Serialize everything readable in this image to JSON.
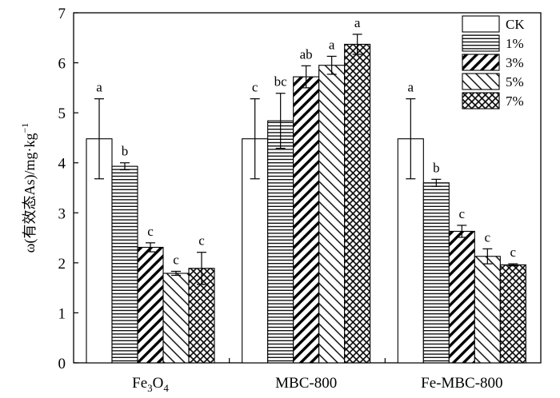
{
  "chart_data": {
    "type": "bar",
    "categories": [
      "Fe3O4",
      "MBC-800",
      "Fe-MBC-800"
    ],
    "category_labels": [
      {
        "main": "Fe",
        "sub": "3",
        "main2": "O",
        "sub2": "4"
      },
      {
        "main": "MBC-800",
        "sub": "",
        "main2": "",
        "sub2": ""
      },
      {
        "main": "Fe-MBC-800",
        "sub": "",
        "main2": "",
        "sub2": ""
      }
    ],
    "series": [
      {
        "name": "CK",
        "pattern": "none",
        "values": [
          4.48,
          4.48,
          4.48
        ],
        "errors": [
          0.8,
          0.8,
          0.8
        ],
        "letters": [
          "a",
          "c",
          "a"
        ]
      },
      {
        "name": "1%",
        "pattern": "hlines",
        "values": [
          3.93,
          4.84,
          3.6
        ],
        "errors": [
          0.07,
          0.55,
          0.07
        ],
        "letters": [
          "b",
          "bc",
          "b"
        ]
      },
      {
        "name": "3%",
        "pattern": "diag-right",
        "values": [
          2.31,
          5.72,
          2.63
        ],
        "errors": [
          0.09,
          0.22,
          0.12
        ],
        "letters": [
          "c",
          "ab",
          "c"
        ]
      },
      {
        "name": "5%",
        "pattern": "diag-left",
        "values": [
          1.79,
          5.95,
          2.13
        ],
        "errors": [
          0.04,
          0.18,
          0.15
        ],
        "letters": [
          "c",
          "a",
          "c"
        ]
      },
      {
        "name": "7%",
        "pattern": "crosshatch",
        "values": [
          1.89,
          6.37,
          1.96
        ],
        "errors": [
          0.32,
          0.2,
          0.02
        ],
        "letters": [
          "c",
          "a",
          "c"
        ]
      }
    ],
    "ylim": [
      0,
      7
    ],
    "yticks": [
      "0",
      "1",
      "2",
      "3",
      "4",
      "5",
      "6",
      "7"
    ],
    "ylabel_prefix": "ω(有效态As)/mg·kg",
    "ylabel_sup": "−1",
    "legend_position": "top-right",
    "grid": false
  }
}
